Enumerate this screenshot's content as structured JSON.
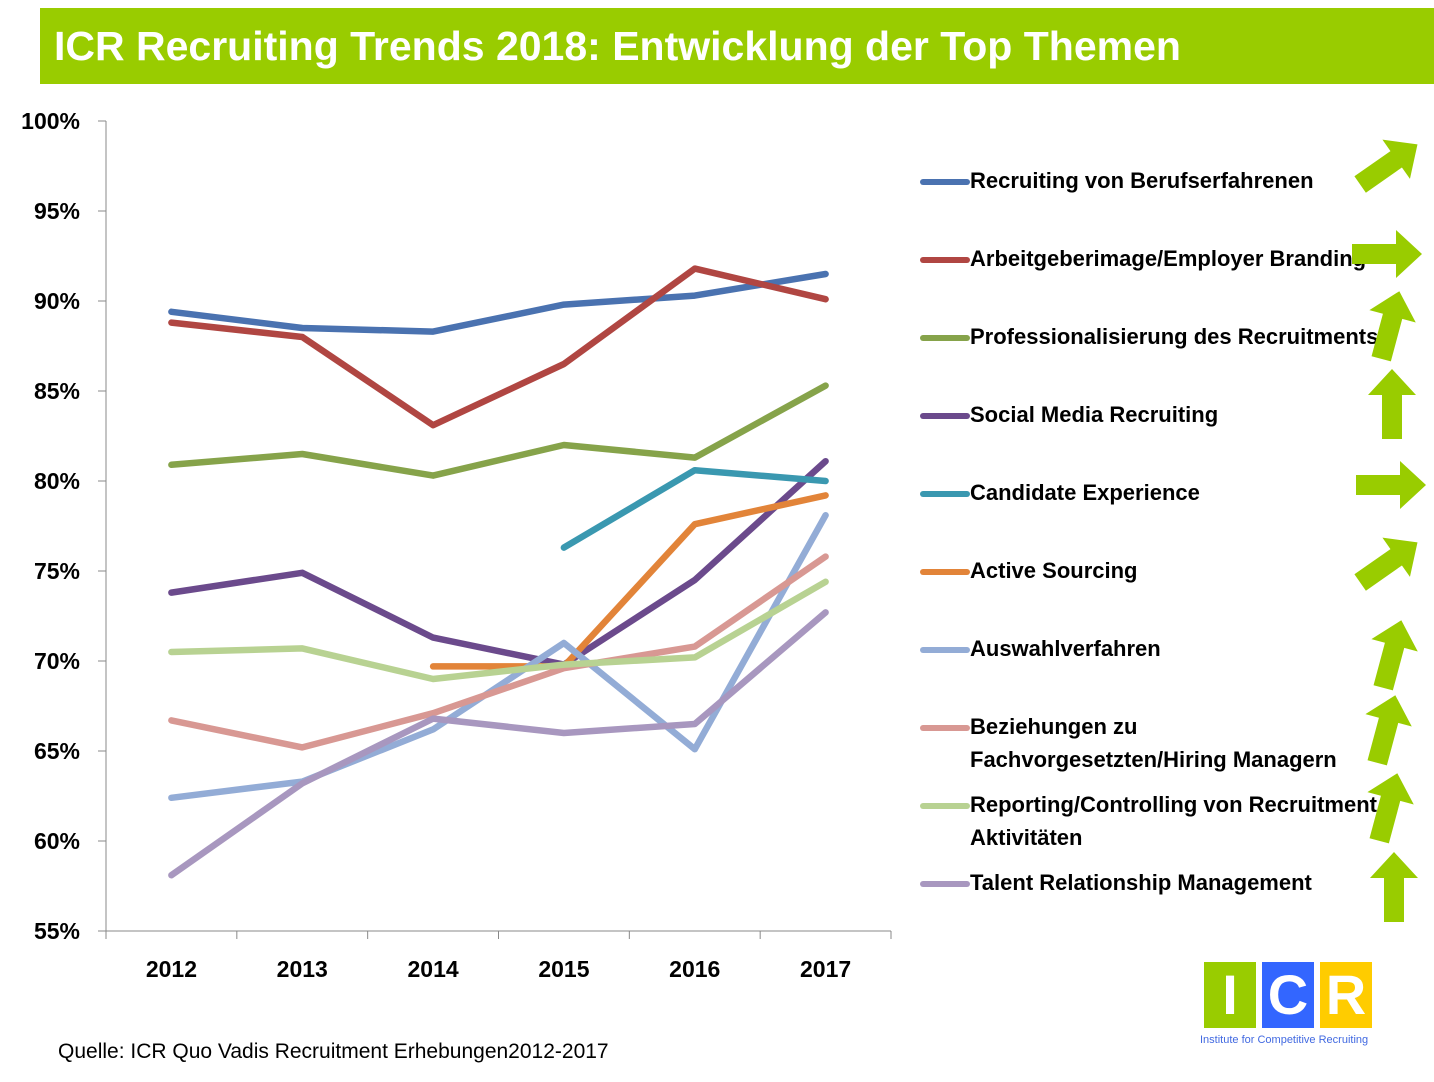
{
  "title": "ICR Recruiting Trends 2018: Entwicklung der Top Themen",
  "source": "Quelle: ICR Quo Vadis Recruitment Erhebungen2012-2017",
  "logo": {
    "letters": [
      "I",
      "C",
      "R"
    ],
    "subtitle": "Institute for Competitive Recruiting",
    "colors": [
      "#99cc00",
      "#3366ff",
      "#ffcc00"
    ]
  },
  "chart_data": {
    "type": "line",
    "categories": [
      "2012",
      "2013",
      "2014",
      "2015",
      "2016",
      "2017"
    ],
    "ylim": [
      55,
      100
    ],
    "yticks": [
      55,
      60,
      65,
      70,
      75,
      80,
      85,
      90,
      95,
      100
    ],
    "ytick_labels": [
      "55%",
      "60%",
      "65%",
      "70%",
      "75%",
      "80%",
      "85%",
      "90%",
      "95%",
      "100%"
    ],
    "grid": false,
    "legend_position": "right",
    "series": [
      {
        "name": "Recruiting von Berufserfahrenen",
        "color": "#4a72b0",
        "values": [
          89.4,
          88.5,
          88.3,
          89.8,
          90.3,
          91.5
        ],
        "trend": "up-right"
      },
      {
        "name": "Arbeitgeberimage/Employer Branding",
        "color": "#b04642",
        "values": [
          88.8,
          88.0,
          83.1,
          86.5,
          91.8,
          90.1
        ],
        "trend": "right"
      },
      {
        "name": "Professionalisierung des Recruitments",
        "color": "#86a34a",
        "values": [
          80.9,
          81.5,
          80.3,
          82.0,
          81.3,
          85.3
        ],
        "trend": "steep-up"
      },
      {
        "name": "Social Media Recruiting",
        "color": "#6b4a8c",
        "values": [
          73.8,
          74.9,
          71.3,
          69.8,
          74.5,
          81.1
        ],
        "trend": "up"
      },
      {
        "name": "Candidate Experience",
        "color": "#3a98b0",
        "values": [
          null,
          null,
          null,
          76.3,
          80.6,
          80.0
        ],
        "trend": "right"
      },
      {
        "name": "Active Sourcing",
        "color": "#e28439",
        "values": [
          null,
          null,
          69.7,
          69.7,
          77.6,
          79.2
        ],
        "trend": "up-right"
      },
      {
        "name": "Auswahlverfahren",
        "color": "#93acd6",
        "values": [
          62.4,
          63.3,
          66.2,
          71.0,
          65.1,
          78.1
        ],
        "trend": "steep-up"
      },
      {
        "name": "Beziehungen zu Fachvorgesetzten/Hiring Managern",
        "color": "#d89893",
        "values": [
          66.7,
          65.2,
          67.1,
          69.6,
          70.8,
          75.8
        ],
        "trend": "steep-up"
      },
      {
        "name": "Reporting/Controlling von Recruitment Aktivitäten",
        "color": "#b8d292",
        "values": [
          70.5,
          70.7,
          69.0,
          69.8,
          70.2,
          74.4
        ],
        "trend": "steep-up"
      },
      {
        "name": "Talent Relationship Management",
        "color": "#a897bf",
        "values": [
          58.1,
          63.2,
          66.8,
          66.0,
          66.5,
          72.7
        ],
        "trend": "up"
      }
    ]
  }
}
